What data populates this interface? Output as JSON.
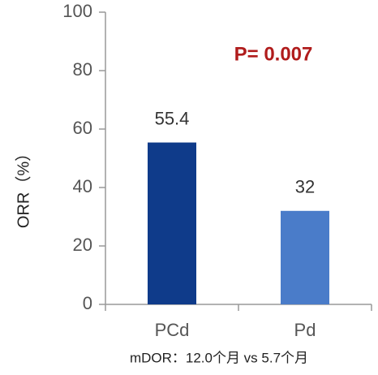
{
  "chart_data": {
    "type": "bar",
    "ylabel": "ORR（%）",
    "categories": [
      "PCd",
      "Pd"
    ],
    "values": [
      55.4,
      32
    ],
    "colors": [
      "#0f3b8a",
      "#4a7cc9"
    ],
    "ylim": [
      0,
      100
    ],
    "yticks": [
      0,
      20,
      40,
      60,
      80,
      100
    ],
    "annotation": "P= 0.007",
    "annotation_color": "#b01c1c",
    "footnote": "mDOR：12.0个月 vs 5.7个月"
  }
}
